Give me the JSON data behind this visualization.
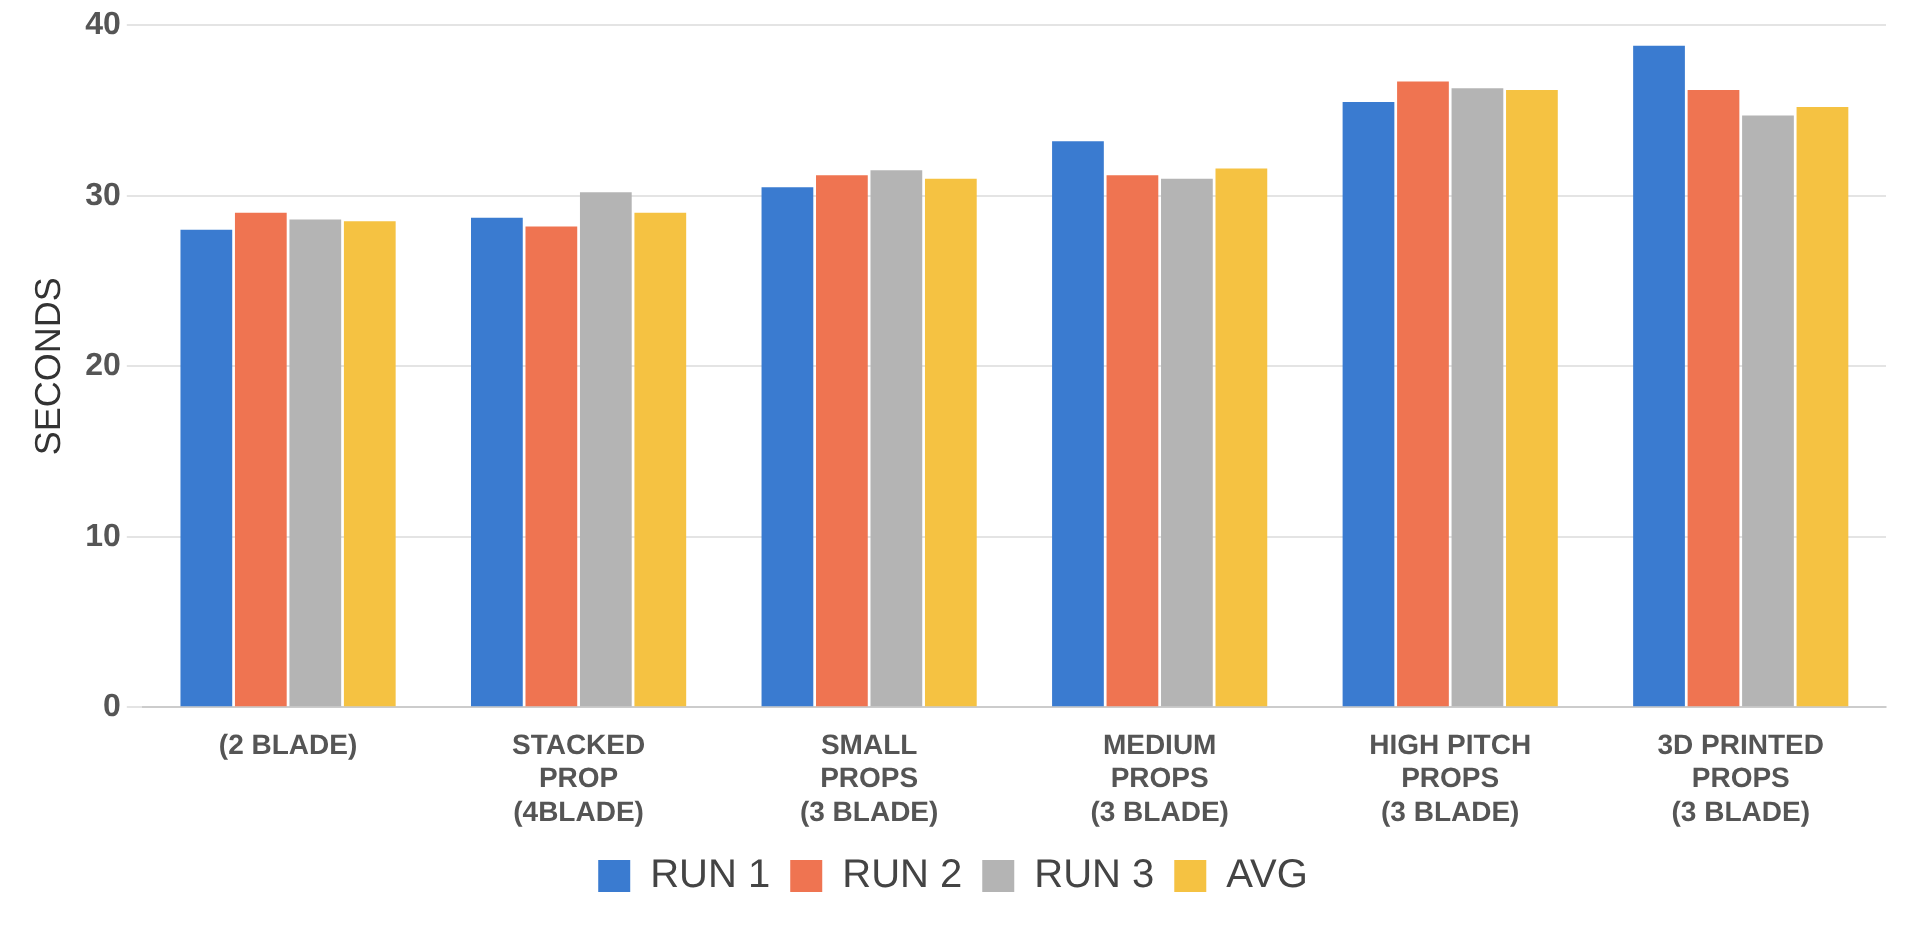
{
  "chart_data": {
    "type": "bar",
    "ylabel": "SECONDS",
    "categories": [
      "(2 BLADE)",
      "STACKED\nPROP\n(4BLADE)",
      "SMALL\nPROPS\n(3 BLADE)",
      "MEDIUM\nPROPS\n(3 BLADE)",
      "HIGH PITCH\nPROPS\n(3 BLADE)",
      "3D PRINTED\nPROPS\n(3 BLADE)"
    ],
    "series": [
      {
        "name": "RUN 1",
        "color": "#3a7bd0",
        "values": [
          28,
          28.7,
          30.5,
          33.2,
          35.5,
          38.8
        ]
      },
      {
        "name": "RUN 2",
        "color": "#ef7451",
        "values": [
          29,
          28.2,
          31.2,
          31.2,
          36.7,
          36.2
        ]
      },
      {
        "name": "RUN 3",
        "color": "#b4b4b4",
        "values": [
          28.6,
          30.2,
          31.5,
          31,
          36.3,
          34.7
        ]
      },
      {
        "name": "AVG",
        "color": "#f5c242",
        "values": [
          28.5,
          29,
          31,
          31.6,
          36.2,
          35.2
        ]
      }
    ],
    "ylim": [
      0,
      40
    ],
    "yticks": [
      0,
      10,
      20,
      30,
      40
    ],
    "grid": "y",
    "legend": "bottom"
  }
}
